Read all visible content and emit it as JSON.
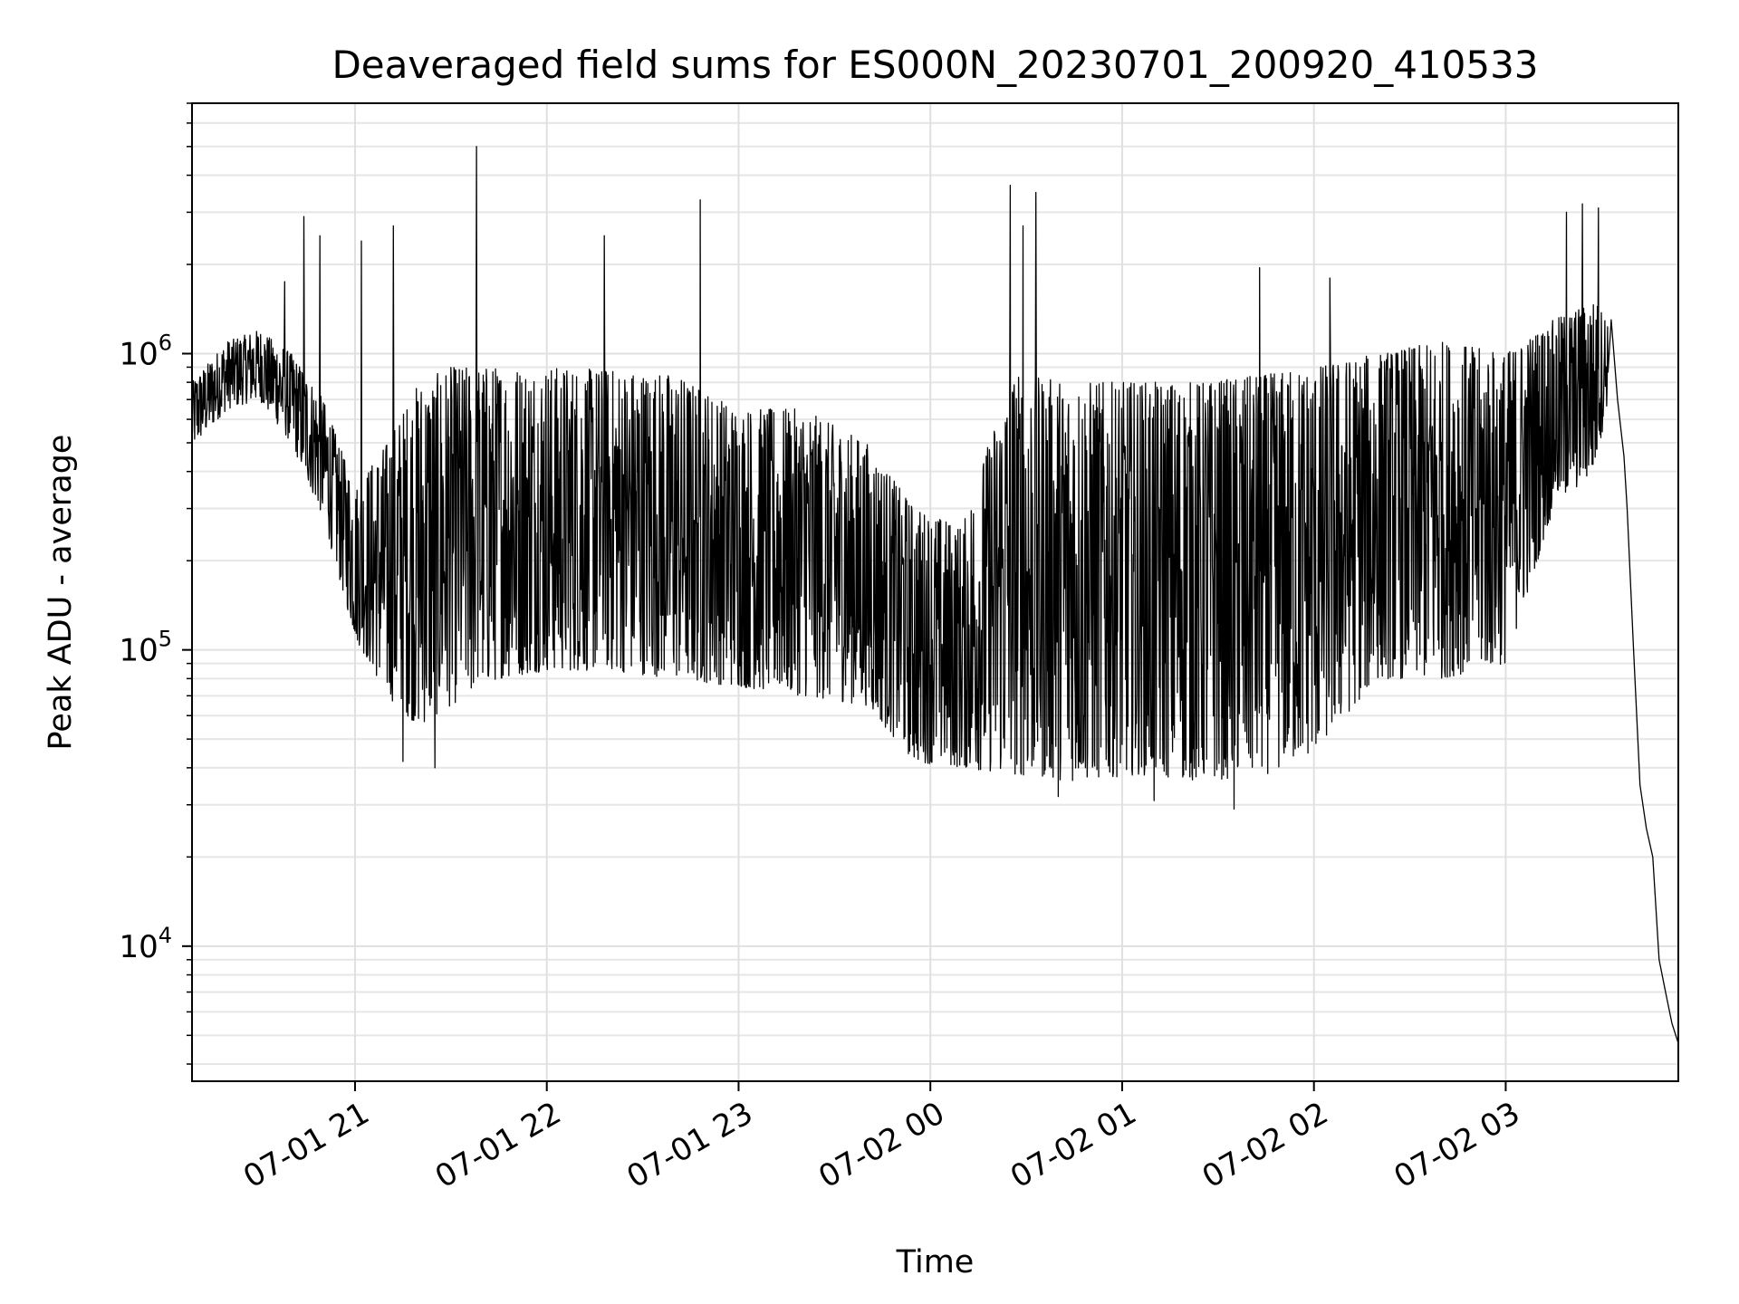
{
  "chart_data": {
    "type": "line",
    "title": "Deaveraged field sums for ES000N_20230701_200920_410533",
    "xlabel": "Time",
    "ylabel": "Peak ADU - average",
    "yscale": "log",
    "ylim": [
      3500,
      7000000
    ],
    "xlim": [
      "07-01 20:09",
      "07-02 03:54"
    ],
    "grid": true,
    "line_color": "#000000",
    "x_ticks": [
      {
        "label": "07-01 21",
        "t": "07-01 21:00"
      },
      {
        "label": "07-01 22",
        "t": "07-01 22:00"
      },
      {
        "label": "07-01 23",
        "t": "07-01 23:00"
      },
      {
        "label": "07-02 00",
        "t": "07-02 00:00"
      },
      {
        "label": "07-02 01",
        "t": "07-02 01:00"
      },
      {
        "label": "07-02 02",
        "t": "07-02 02:00"
      },
      {
        "label": "07-02 03",
        "t": "07-02 03:00"
      }
    ],
    "y_ticks": [
      {
        "base": "10",
        "exp": "4",
        "value": 10000
      },
      {
        "base": "10",
        "exp": "5",
        "value": 100000
      },
      {
        "base": "10",
        "exp": "6",
        "value": 1000000
      }
    ],
    "series": [
      {
        "envelope": [
          {
            "t": "07-01 20:09",
            "low": 480000,
            "high": 800000
          },
          {
            "t": "07-01 20:20",
            "low": 650000,
            "high": 1100000
          },
          {
            "t": "07-01 20:30",
            "low": 700000,
            "high": 1200000
          },
          {
            "t": "07-01 20:40",
            "low": 500000,
            "high": 1000000
          },
          {
            "t": "07-01 20:50",
            "low": 280000,
            "high": 700000
          },
          {
            "t": "07-01 21:00",
            "low": 110000,
            "high": 350000
          },
          {
            "t": "07-01 21:10",
            "low": 70000,
            "high": 500000
          },
          {
            "t": "07-01 21:20",
            "low": 55000,
            "high": 800000
          },
          {
            "t": "07-01 21:30",
            "low": 65000,
            "high": 900000
          },
          {
            "t": "07-01 21:45",
            "low": 80000,
            "high": 900000
          },
          {
            "t": "07-01 22:00",
            "low": 85000,
            "high": 900000
          },
          {
            "t": "07-01 22:20",
            "low": 85000,
            "high": 880000
          },
          {
            "t": "07-01 22:40",
            "low": 80000,
            "high": 850000
          },
          {
            "t": "07-01 23:00",
            "low": 75000,
            "high": 650000
          },
          {
            "t": "07-01 23:20",
            "low": 70000,
            "high": 650000
          },
          {
            "t": "07-01 23:40",
            "low": 65000,
            "high": 500000
          },
          {
            "t": "07-01 23:55",
            "low": 42000,
            "high": 300000
          },
          {
            "t": "07-02 00:10",
            "low": 40000,
            "high": 260000
          },
          {
            "t": "07-02 00:25",
            "low": 38000,
            "high": 850000
          },
          {
            "t": "07-02 00:45",
            "low": 36000,
            "high": 800000
          },
          {
            "t": "07-02 01:05",
            "low": 38000,
            "high": 800000
          },
          {
            "t": "07-02 01:25",
            "low": 36000,
            "high": 800000
          },
          {
            "t": "07-02 01:45",
            "low": 38000,
            "high": 850000
          },
          {
            "t": "07-02 02:00",
            "low": 45000,
            "high": 900000
          },
          {
            "t": "07-02 02:20",
            "low": 80000,
            "high": 1000000
          },
          {
            "t": "07-02 02:40",
            "low": 80000,
            "high": 1100000
          },
          {
            "t": "07-02 03:00",
            "low": 90000,
            "high": 1000000
          },
          {
            "t": "07-02 03:15",
            "low": 300000,
            "high": 1300000
          },
          {
            "t": "07-02 03:28",
            "low": 400000,
            "high": 1500000
          },
          {
            "t": "07-02 03:32",
            "low": 700000,
            "high": 1300000
          }
        ],
        "spikes": [
          {
            "t": "07-01 20:38",
            "value": 1750000
          },
          {
            "t": "07-01 20:44",
            "value": 2900000
          },
          {
            "t": "07-01 20:49",
            "value": 2500000
          },
          {
            "t": "07-01 21:02",
            "value": 2400000
          },
          {
            "t": "07-01 21:12",
            "value": 2700000
          },
          {
            "t": "07-01 21:38",
            "value": 5000000
          },
          {
            "t": "07-01 22:18",
            "value": 2500000
          },
          {
            "t": "07-01 22:48",
            "value": 3300000
          },
          {
            "t": "07-02 00:25",
            "value": 3700000
          },
          {
            "t": "07-02 00:29",
            "value": 2700000
          },
          {
            "t": "07-02 00:33",
            "value": 3500000
          },
          {
            "t": "07-02 01:43",
            "value": 1950000
          },
          {
            "t": "07-02 02:05",
            "value": 1800000
          },
          {
            "t": "07-02 03:19",
            "value": 3000000
          },
          {
            "t": "07-02 03:24",
            "value": 3200000
          },
          {
            "t": "07-02 03:29",
            "value": 3100000
          }
        ],
        "dips": [
          {
            "t": "07-01 21:15",
            "value": 42000
          },
          {
            "t": "07-01 21:25",
            "value": 40000
          },
          {
            "t": "07-02 00:40",
            "value": 32000
          },
          {
            "t": "07-02 01:10",
            "value": 31000
          },
          {
            "t": "07-02 01:35",
            "value": 29000
          }
        ],
        "tail": [
          {
            "t": "07-02 03:33",
            "value": 1300000
          },
          {
            "t": "07-02 03:35",
            "value": 700000
          },
          {
            "t": "07-02 03:37",
            "value": 450000
          },
          {
            "t": "07-02 03:38",
            "value": 300000
          },
          {
            "t": "07-02 03:40",
            "value": 100000
          },
          {
            "t": "07-02 03:42",
            "value": 35000
          },
          {
            "t": "07-02 03:44",
            "value": 25000
          },
          {
            "t": "07-02 03:46",
            "value": 20000
          },
          {
            "t": "07-02 03:48",
            "value": 9000
          },
          {
            "t": "07-02 03:50",
            "value": 7000
          },
          {
            "t": "07-02 03:52",
            "value": 5500
          },
          {
            "t": "07-02 03:54",
            "value": 4700
          }
        ]
      }
    ]
  }
}
